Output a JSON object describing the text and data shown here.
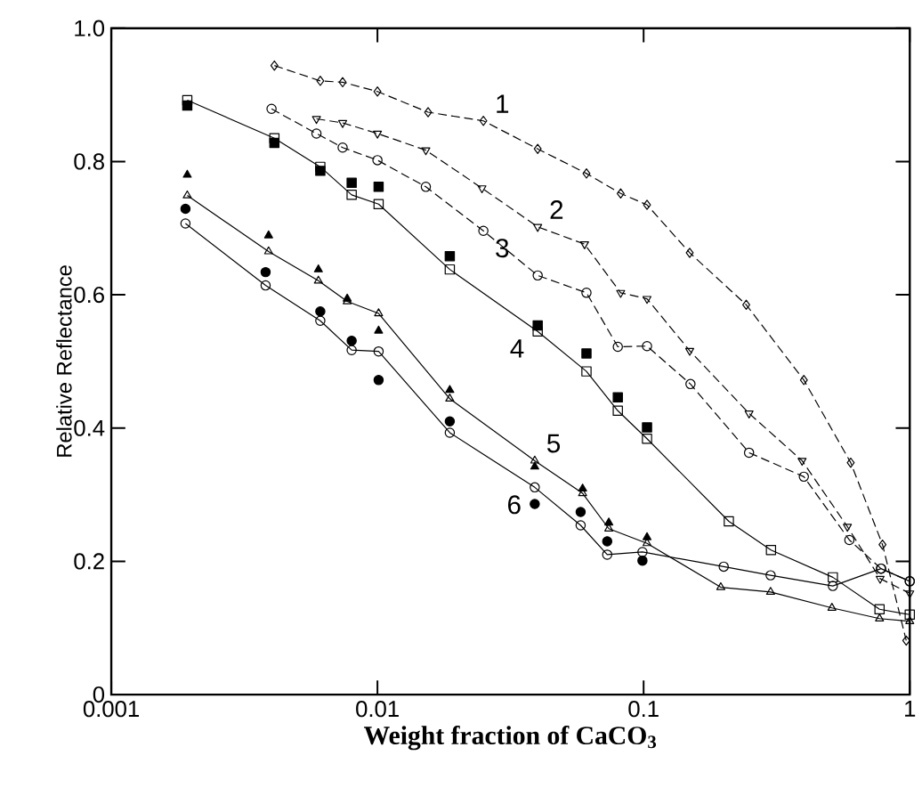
{
  "chart_data": {
    "type": "line",
    "xlabel": "Weight fraction of CaCO$_{3}$",
    "ylabel": "Relative Reflectance",
    "log": "x",
    "grid": false,
    "xlim": [
      0.001,
      1
    ],
    "ylim": [
      0,
      1
    ],
    "xticks": [
      0.001,
      0.01,
      0.1,
      1
    ],
    "yticks": [
      0,
      0.2,
      0.4,
      0.6,
      0.8,
      {
        "value": 1,
        "label": "1.0"
      }
    ],
    "series": [
      {
        "name": "1",
        "color": "#000000",
        "marker": "diamond",
        "line_style": "dashed",
        "x": [
          0.0041,
          0.0061,
          0.0074,
          0.01,
          0.0155,
          0.025,
          0.04,
          0.061,
          0.082,
          0.103,
          0.149,
          0.243,
          0.4,
          0.6,
          0.79,
          0.97
        ],
        "values": [
          0.944,
          0.921,
          0.919,
          0.905,
          0.874,
          0.861,
          0.819,
          0.782,
          0.752,
          0.735,
          0.663,
          0.585,
          0.472,
          0.348,
          0.225,
          0.081
        ]
      },
      {
        "name": "2",
        "color": "#000000",
        "marker": "triangle_down",
        "line_style": "dashed",
        "x": [
          0.0059,
          0.0074,
          0.01,
          0.0152,
          0.0247,
          0.04,
          0.06,
          0.082,
          0.103,
          0.149,
          0.249,
          0.394,
          0.583,
          0.774,
          1.0
        ],
        "values": [
          0.864,
          0.858,
          0.842,
          0.817,
          0.76,
          0.702,
          0.676,
          0.603,
          0.594,
          0.516,
          0.422,
          0.351,
          0.252,
          0.174,
          0.152
        ]
      },
      {
        "name": "3",
        "color": "#000000",
        "marker": "circle",
        "line_style": "dashed",
        "x": [
          0.004,
          0.0059,
          0.0074,
          0.01,
          0.0152,
          0.025,
          0.04,
          0.061,
          0.08,
          0.103,
          0.15,
          0.249,
          0.4,
          0.593,
          0.78,
          1.0
        ],
        "values": [
          0.879,
          0.842,
          0.821,
          0.802,
          0.762,
          0.696,
          0.629,
          0.603,
          0.522,
          0.523,
          0.466,
          0.363,
          0.327,
          0.232,
          0.189,
          0.17
        ]
      },
      {
        "type": "scatter",
        "color": "#000000",
        "marker": "square",
        "x": [
          0.00193,
          0.0041,
          0.0061,
          0.008,
          0.0101,
          0.0187,
          0.04,
          0.061,
          0.08,
          0.103
        ],
        "values": [
          0.884,
          0.828,
          0.786,
          0.768,
          0.762,
          0.658,
          0.554,
          0.512,
          0.446,
          0.401
        ]
      },
      {
        "name": "4",
        "color": "#000000",
        "marker": "square",
        "line_style": "solid",
        "x": [
          0.00193,
          0.0041,
          0.0061,
          0.008,
          0.0101,
          0.0187,
          0.04,
          0.061,
          0.08,
          0.103,
          0.209,
          0.301,
          0.514,
          0.77,
          1.0
        ],
        "values": [
          0.892,
          0.835,
          0.792,
          0.75,
          0.736,
          0.638,
          0.545,
          0.485,
          0.426,
          0.384,
          0.26,
          0.217,
          0.176,
          0.128,
          0.12
        ]
      },
      {
        "type": "scatter",
        "color": "#000000",
        "marker": "triangle",
        "x": [
          0.00193,
          0.0039,
          0.006,
          0.0077,
          0.0101,
          0.0187,
          0.039,
          0.059,
          0.074,
          0.103
        ],
        "values": [
          0.78,
          0.689,
          0.638,
          0.594,
          0.546,
          0.457,
          0.342,
          0.309,
          0.258,
          0.236
        ]
      },
      {
        "name": "5",
        "color": "#000000",
        "marker": "triangle",
        "line_style": "solid",
        "x": [
          0.00193,
          0.0039,
          0.006,
          0.0077,
          0.0101,
          0.0187,
          0.039,
          0.059,
          0.074,
          0.103,
          0.195,
          0.3,
          0.51,
          0.77,
          1.0
        ],
        "values": [
          0.749,
          0.665,
          0.621,
          0.59,
          0.572,
          0.444,
          0.351,
          0.302,
          0.249,
          0.227,
          0.161,
          0.154,
          0.13,
          0.114,
          0.11
        ]
      },
      {
        "type": "scatter",
        "color": "#000000",
        "marker": "circle",
        "x": [
          0.0019,
          0.0038,
          0.0061,
          0.008,
          0.0101,
          0.0187,
          0.039,
          0.058,
          0.073,
          0.099
        ],
        "values": [
          0.729,
          0.634,
          0.575,
          0.531,
          0.472,
          0.41,
          0.286,
          0.274,
          0.23,
          0.201
        ]
      },
      {
        "name": "6",
        "color": "#000000",
        "marker": "circle",
        "line_style": "solid",
        "x": [
          0.0019,
          0.0038,
          0.0061,
          0.008,
          0.0101,
          0.0187,
          0.039,
          0.058,
          0.073,
          0.099,
          0.2,
          0.3,
          0.514,
          0.78,
          1.0
        ],
        "values": [
          0.707,
          0.614,
          0.561,
          0.517,
          0.515,
          0.393,
          0.311,
          0.254,
          0.21,
          0.214,
          0.192,
          0.179,
          0.163,
          0.189,
          0.17
        ]
      }
    ]
  }
}
